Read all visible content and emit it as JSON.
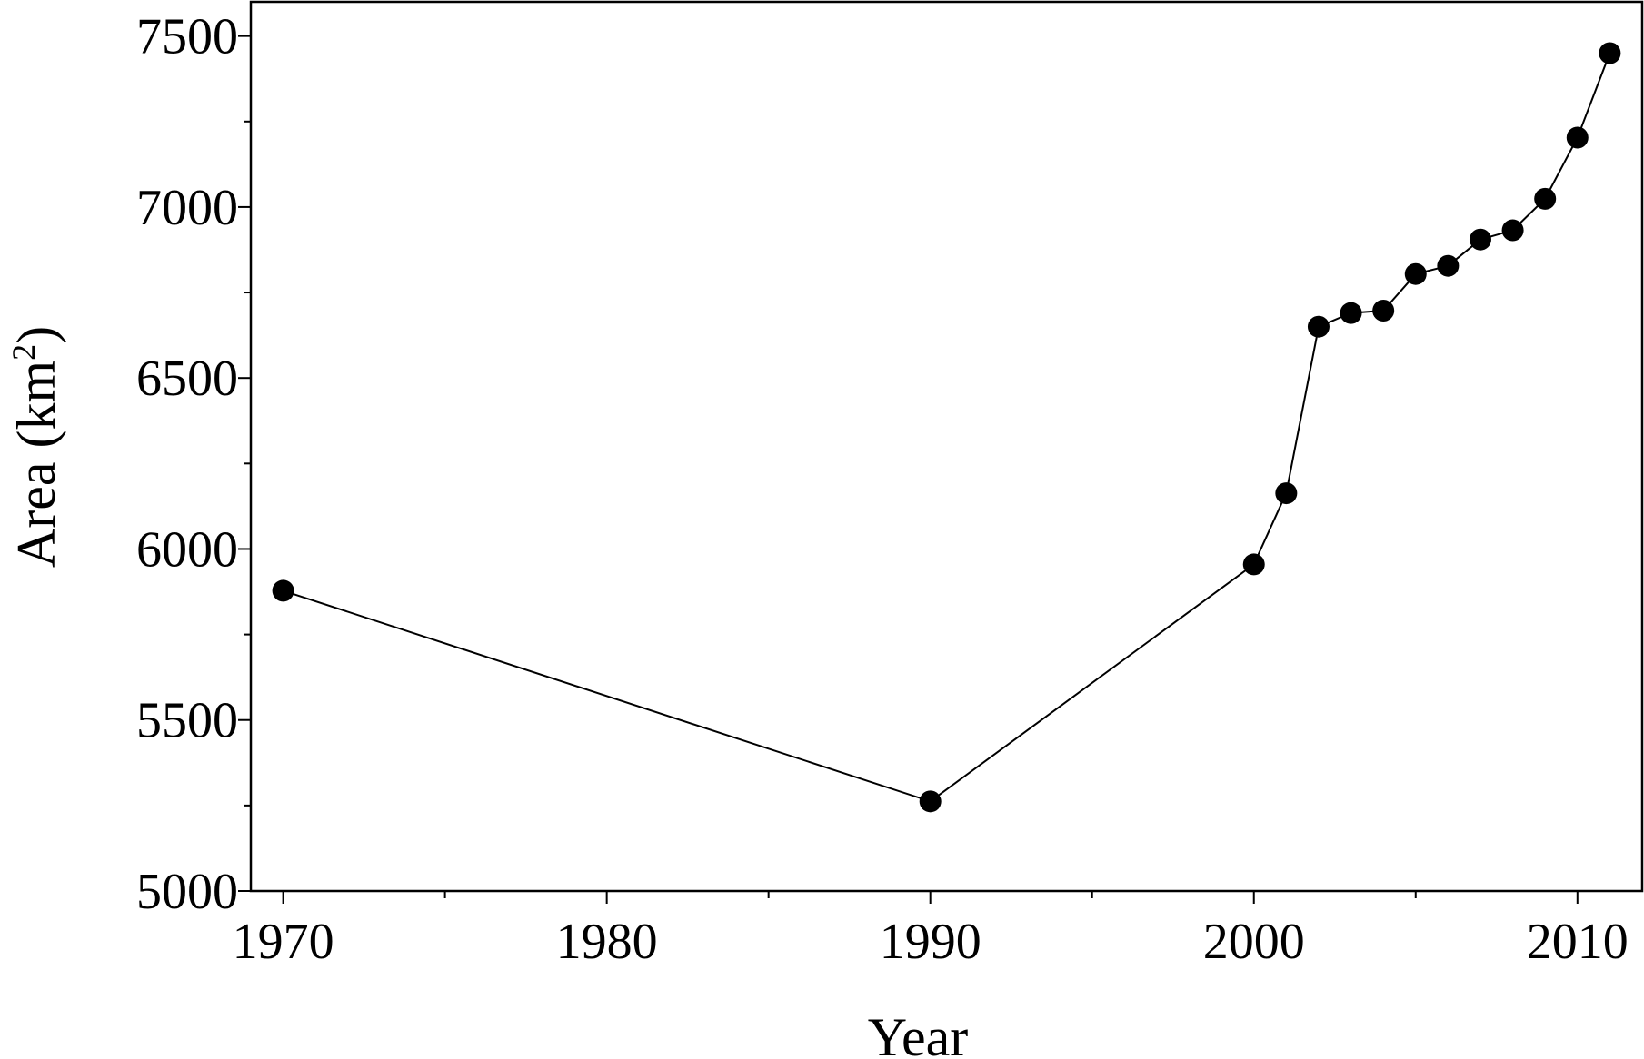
{
  "chart_data": {
    "type": "line",
    "xlabel": "Year",
    "ylabel": {
      "prefix": "Area (km",
      "superscript": "2",
      "suffix": ")"
    },
    "xlim": [
      1969,
      2012
    ],
    "ylim": [
      5000,
      7600
    ],
    "x_ticks": [
      1970,
      1980,
      1990,
      2000,
      2010
    ],
    "x_minor_ticks": [
      1975,
      1985,
      1995,
      2005
    ],
    "y_ticks": [
      5000,
      5500,
      6000,
      6500,
      7000,
      7500
    ],
    "y_minor_ticks": [
      5250,
      5750,
      6250,
      6750,
      7250
    ],
    "grid": false,
    "marker": "filled-circle",
    "line_color": "#000000",
    "series": [
      {
        "x": [
          1970,
          1990,
          2000,
          2001,
          2002,
          2003,
          2004,
          2005,
          2006,
          2007,
          2008,
          2009,
          2010,
          2011
        ],
        "y": [
          5878,
          5262,
          5955,
          6163,
          6650,
          6690,
          6697,
          6804,
          6828,
          6905,
          6932,
          7024,
          7203,
          7450
        ]
      }
    ]
  }
}
